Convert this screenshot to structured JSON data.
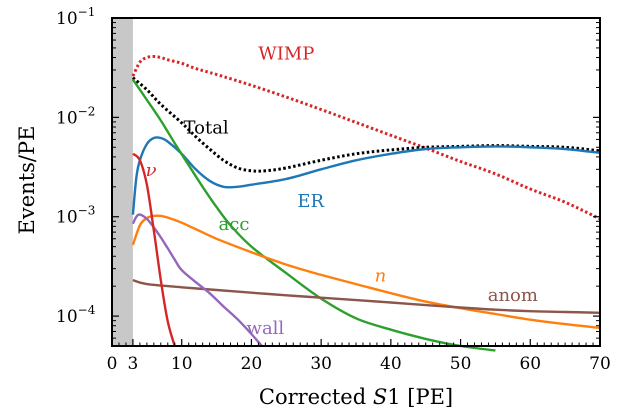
{
  "chart_data": {
    "type": "line",
    "xlabel_parts": [
      "Corrected ",
      "S",
      "1 [PE]"
    ],
    "ylabel": "Events/PE",
    "xlim": [
      0,
      70
    ],
    "ylim": [
      5e-05,
      0.1
    ],
    "yscale": "log",
    "grid": false,
    "excluded_band": [
      0,
      3
    ],
    "x_ticks": [
      0,
      3,
      10,
      20,
      30,
      40,
      50,
      60,
      70
    ],
    "y_ticks": [
      {
        "value": 0.1,
        "base": "10",
        "exp": "−1"
      },
      {
        "value": 0.01,
        "base": "10",
        "exp": "−2"
      },
      {
        "value": 0.001,
        "base": "10",
        "exp": "−3"
      },
      {
        "value": 0.0001,
        "base": "10",
        "exp": "−4"
      }
    ],
    "series": [
      {
        "name": "WIMP",
        "italic": false,
        "color": "#d62728",
        "dashed": true,
        "label_at": [
          25,
          0.043
        ],
        "x": [
          3,
          4,
          5,
          6,
          7,
          8,
          10,
          12,
          15,
          20,
          25,
          30,
          35,
          40,
          45,
          50,
          55,
          60,
          65,
          70
        ],
        "y": [
          0.026,
          0.036,
          0.04,
          0.041,
          0.04,
          0.038,
          0.035,
          0.031,
          0.027,
          0.021,
          0.016,
          0.012,
          0.0089,
          0.0066,
          0.0049,
          0.0036,
          0.0027,
          0.0019,
          0.0014,
          0.00095
        ]
      },
      {
        "name": "Total",
        "italic": false,
        "color": "#000000",
        "dashed": true,
        "label_at": [
          13.5,
          0.0077
        ],
        "x": [
          3,
          5,
          7,
          10,
          12,
          14,
          16,
          18,
          20,
          22,
          25,
          30,
          35,
          40,
          45,
          50,
          55,
          60,
          65,
          70
        ],
        "y": [
          0.025,
          0.019,
          0.0135,
          0.0088,
          0.0064,
          0.0048,
          0.0037,
          0.0031,
          0.0029,
          0.0029,
          0.0031,
          0.0037,
          0.0043,
          0.0047,
          0.005,
          0.0051,
          0.0052,
          0.0051,
          0.005,
          0.0046
        ]
      },
      {
        "name": "ER",
        "italic": false,
        "color": "#1f77b4",
        "dashed": false,
        "label_at": [
          28.5,
          0.0014
        ],
        "x": [
          3,
          3.5,
          4,
          5,
          6,
          7,
          8,
          10,
          12,
          14,
          16,
          18,
          20,
          25,
          30,
          35,
          40,
          45,
          50,
          55,
          60,
          65,
          70
        ],
        "y": [
          0.00105,
          0.0025,
          0.0037,
          0.0054,
          0.0062,
          0.0062,
          0.0057,
          0.0043,
          0.003,
          0.0023,
          0.002,
          0.002,
          0.0021,
          0.0024,
          0.003,
          0.0037,
          0.0043,
          0.0048,
          0.005,
          0.0051,
          0.005,
          0.0048,
          0.0044
        ]
      },
      {
        "name": "acc",
        "italic": false,
        "color": "#2ca02c",
        "dashed": false,
        "label_at": [
          17.5,
          0.00083
        ],
        "x": [
          3,
          5,
          7,
          9,
          11,
          13,
          15,
          17,
          20,
          25,
          30,
          35,
          40,
          45,
          50,
          55
        ],
        "y": [
          0.024,
          0.015,
          0.0093,
          0.0055,
          0.0033,
          0.002,
          0.00125,
          0.00082,
          0.0005,
          0.00027,
          0.00015,
          9.5e-05,
          7.3e-05,
          5.9e-05,
          5e-05,
          4.5e-05
        ]
      },
      {
        "name": "n",
        "italic": true,
        "color": "#ff7f0e",
        "dashed": false,
        "label_at": [
          38.5,
          0.00025
        ],
        "x": [
          3,
          4,
          5,
          6,
          7,
          8,
          10,
          12,
          15,
          20,
          25,
          30,
          35,
          40,
          45,
          50,
          55,
          60,
          65,
          70
        ],
        "y": [
          0.00052,
          0.00082,
          0.00097,
          0.00102,
          0.00102,
          0.00098,
          0.00087,
          0.00075,
          0.0006,
          0.00044,
          0.00033,
          0.00026,
          0.00021,
          0.00017,
          0.00014,
          0.00012,
          0.000105,
          9.2e-05,
          8.3e-05,
          7.6e-05
        ]
      },
      {
        "name": "anom",
        "italic": false,
        "color": "#8c564b",
        "dashed": false,
        "label_at": [
          57.5,
          0.00016
        ],
        "x": [
          3,
          5,
          10,
          15,
          20,
          25,
          30,
          35,
          40,
          45,
          50,
          55,
          60,
          65,
          70
        ],
        "y": [
          0.00023,
          0.00021,
          0.000195,
          0.000183,
          0.000172,
          0.000162,
          0.000153,
          0.000145,
          0.000137,
          0.000129,
          0.000122,
          0.000116,
          0.000112,
          0.00011,
          0.000108
        ]
      },
      {
        "name": "wall",
        "italic": false,
        "color": "#9467bd",
        "dashed": false,
        "label_at": [
          22,
          7.45e-05
        ],
        "x": [
          3,
          3.5,
          4,
          5,
          6,
          7,
          8,
          9,
          10,
          12,
          14,
          16,
          18,
          20,
          21.5
        ],
        "y": [
          0.00085,
          0.001,
          0.00105,
          0.00095,
          0.00078,
          0.00062,
          0.00048,
          0.00037,
          0.00029,
          0.00022,
          0.00017,
          0.000125,
          9.3e-05,
          6.6e-05,
          5e-05
        ]
      },
      {
        "name": "ν",
        "italic": true,
        "color": "#d62728",
        "dashed": false,
        "label_at": [
          5.6,
          0.0029
        ],
        "x": [
          3,
          4,
          5,
          6,
          7,
          8,
          9
        ],
        "y": [
          0.0043,
          0.0037,
          0.0021,
          0.00073,
          0.00023,
          8.8e-05,
          5e-05
        ]
      }
    ]
  }
}
